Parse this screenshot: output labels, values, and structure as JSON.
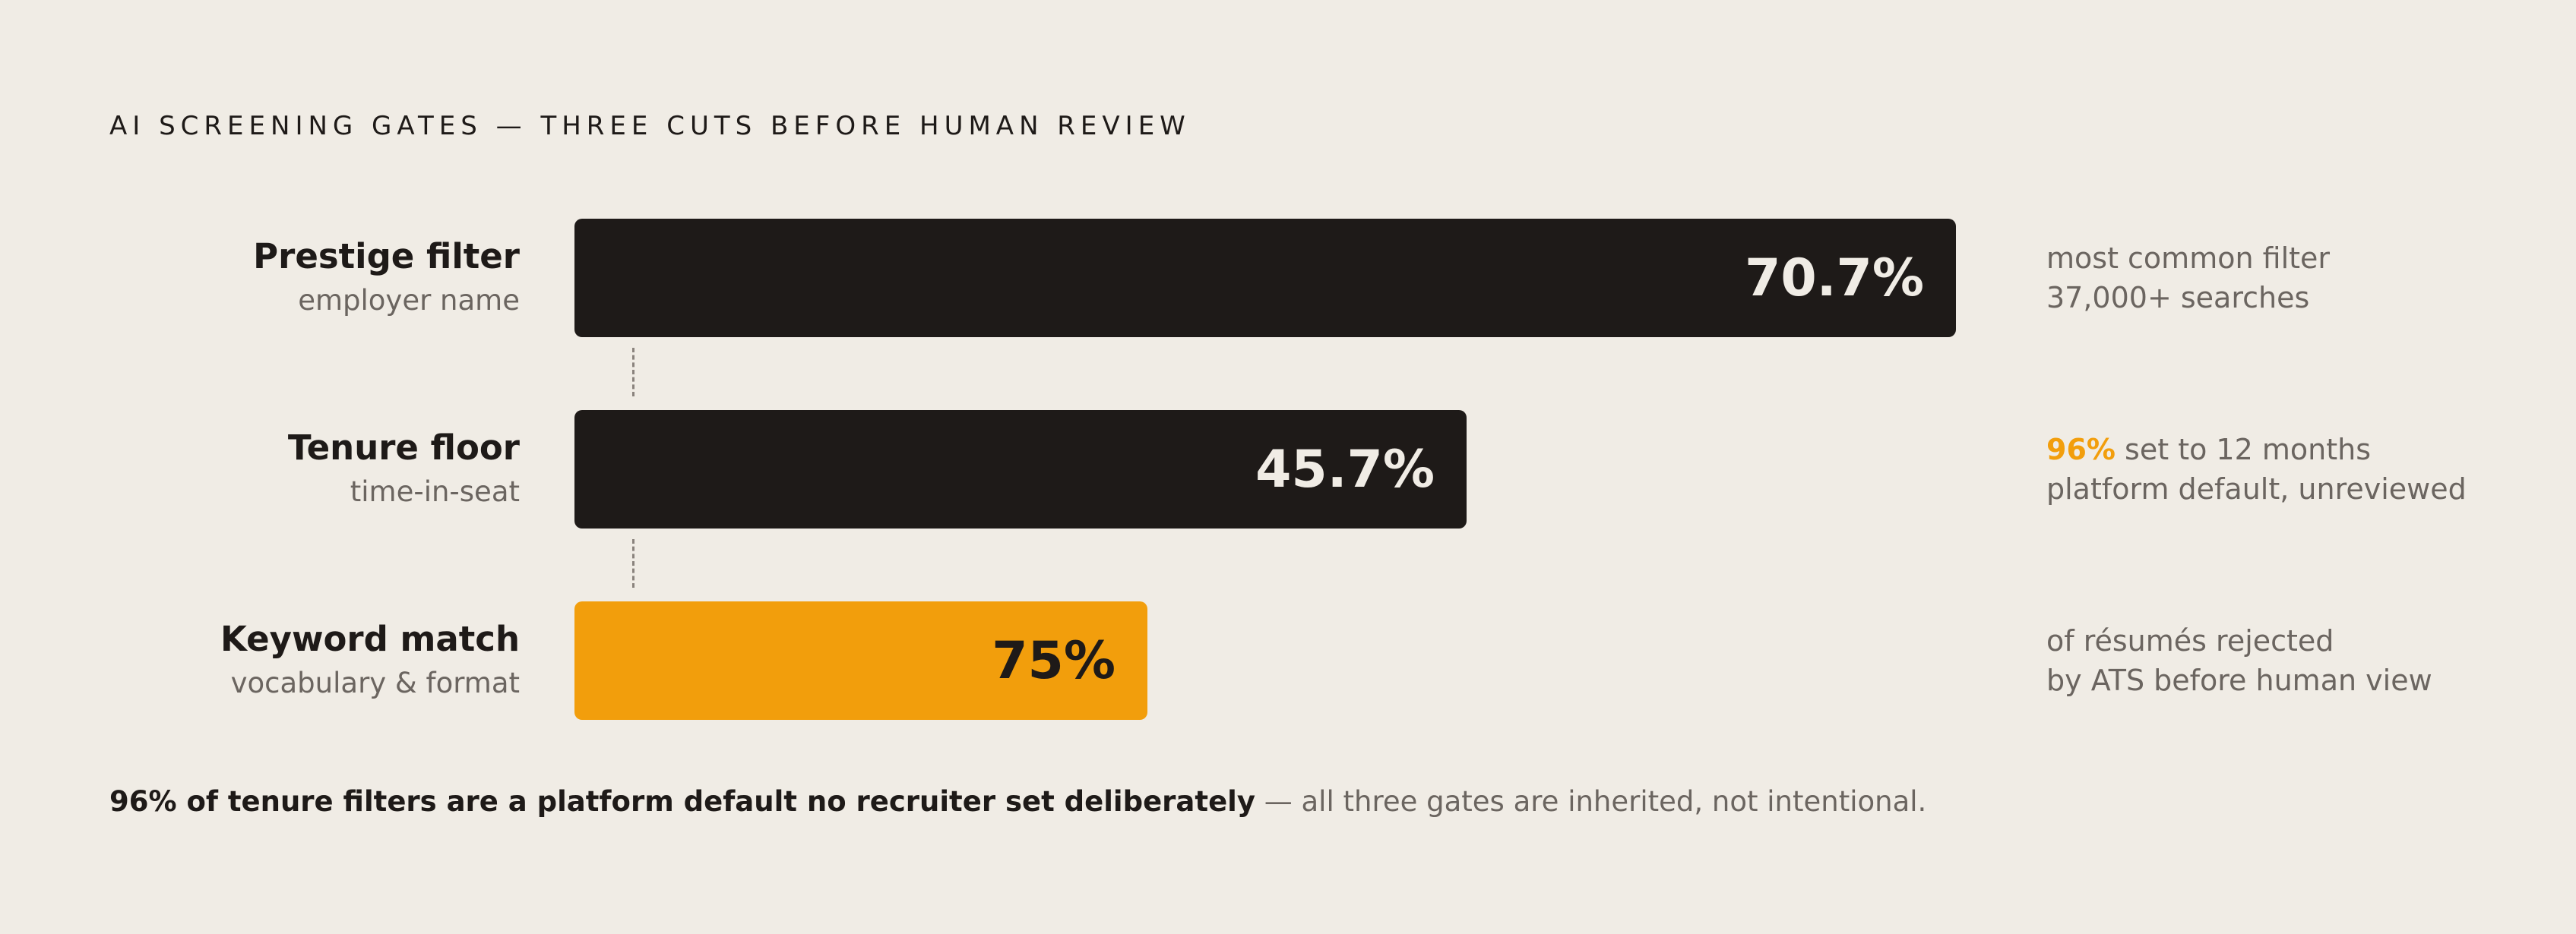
{
  "title": "AI SCREENING GATES — THREE CUTS BEFORE HUMAN REVIEW",
  "chart_data": {
    "type": "bar",
    "orientation": "horizontal",
    "title": "AI SCREENING GATES — THREE CUTS BEFORE HUMAN REVIEW",
    "categories": [
      "Prestige filter",
      "Tenure floor",
      "Keyword match"
    ],
    "values": [
      70.7,
      45.7,
      75
    ],
    "value_labels": [
      "70.7%",
      "45.7%",
      "75%"
    ],
    "units": "%",
    "grid": false,
    "legend": "none",
    "colors": {
      "dark": "#1e1a18",
      "accent": "#f29e0c"
    }
  },
  "rows": [
    {
      "title": "Prestige filter",
      "subtitle": "employer name",
      "value_label": "70.7%",
      "note_highlight": "",
      "note_line1": "most common filter",
      "note_line2": "37,000+ searches"
    },
    {
      "title": "Tenure floor",
      "subtitle": "time-in-seat",
      "value_label": "45.7%",
      "note_highlight": "96%",
      "note_line1": " set to 12 months",
      "note_line2": "platform default, unreviewed"
    },
    {
      "title": "Keyword match",
      "subtitle": "vocabulary & format",
      "value_label": "75%",
      "note_highlight": "",
      "note_line1": "of résumés rejected",
      "note_line2": "by ATS before human view"
    }
  ],
  "footer": {
    "strong": "96% of tenure filters are a platform default no recruiter set deliberately",
    "rest": " — all three gates are inherited, not intentional."
  }
}
